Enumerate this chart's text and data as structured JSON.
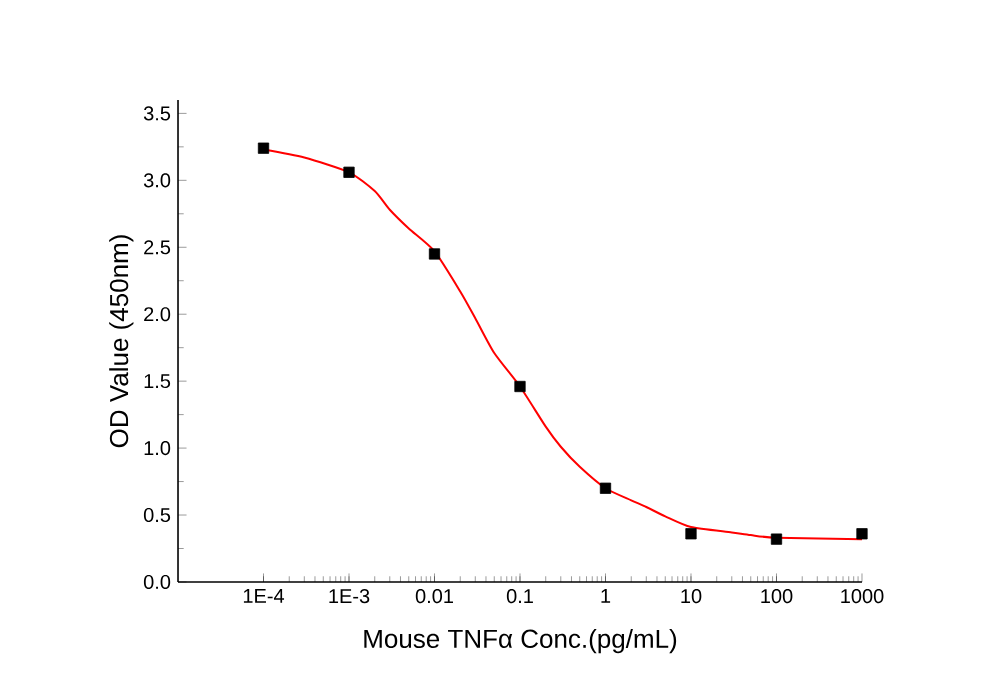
{
  "chart_data": {
    "type": "scatter",
    "xlabel": "Mouse TNFα Conc.(pg/mL)",
    "ylabel": "OD Value (450nm)",
    "log": "x",
    "marker": "square",
    "grid": false,
    "xlim": [
      1e-05,
      1000
    ],
    "ylim": [
      0,
      3.6
    ],
    "xticks": [
      {
        "value": 0.0001,
        "label": "1E-4"
      },
      {
        "value": 0.001,
        "label": "1E-3"
      },
      0.01,
      0.1,
      1,
      10,
      100,
      1000
    ],
    "yticks": [
      {
        "value": 0,
        "label": "0.0"
      },
      0.5,
      {
        "value": 1,
        "label": "1.0"
      },
      1.5,
      {
        "value": 2,
        "label": "2.0"
      },
      2.5,
      {
        "value": 3,
        "label": "3.0"
      },
      3.5
    ],
    "series": [
      {
        "color": "#000000",
        "x": [
          0.0001,
          0.001,
          0.01,
          0.1,
          1,
          10,
          100,
          1000
        ],
        "values": [
          3.24,
          3.06,
          2.45,
          1.46,
          0.7,
          0.36,
          0.32,
          0.36
        ]
      },
      {
        "type": "line",
        "marker": "none",
        "color": "#ff0000",
        "x": [
          0.0001,
          0.0003,
          0.001,
          0.002,
          0.003,
          0.005,
          0.01,
          0.02,
          0.03,
          0.05,
          0.1,
          0.2,
          0.3,
          0.5,
          1,
          2,
          3,
          5,
          10,
          30,
          50,
          100,
          1000
        ],
        "values": [
          3.23,
          3.17,
          3.06,
          2.92,
          2.78,
          2.64,
          2.47,
          2.17,
          1.97,
          1.71,
          1.46,
          1.16,
          1.01,
          0.86,
          0.7,
          0.61,
          0.56,
          0.49,
          0.41,
          0.37,
          0.35,
          0.33,
          0.32
        ]
      }
    ]
  }
}
